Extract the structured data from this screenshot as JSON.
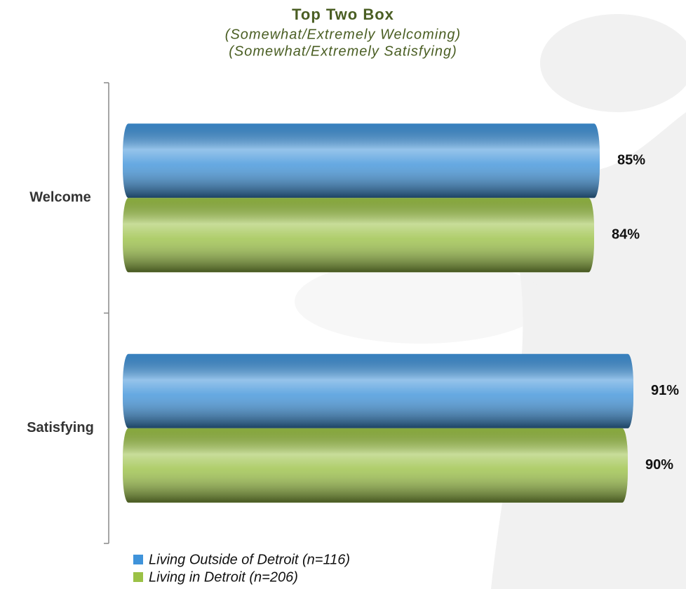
{
  "chart_data": {
    "type": "hbar",
    "title": "Top Two Box",
    "subtitles": [
      "(Somewhat/Extremely Welcoming)",
      "(Somewhat/Extremely Satisfying)"
    ],
    "categories": [
      "Welcome",
      "Satisfying"
    ],
    "series": [
      {
        "name": "Living Outside of Detroit (n=116)",
        "color": "#3f93da",
        "values": [
          85,
          91
        ],
        "value_labels": [
          "85%",
          "91%"
        ]
      },
      {
        "name": "Living in Detroit (n=206)",
        "color": "#9bc146",
        "values": [
          84,
          90
        ],
        "value_labels": [
          "84%",
          "90%"
        ]
      }
    ],
    "xlim": [
      0,
      100
    ]
  }
}
